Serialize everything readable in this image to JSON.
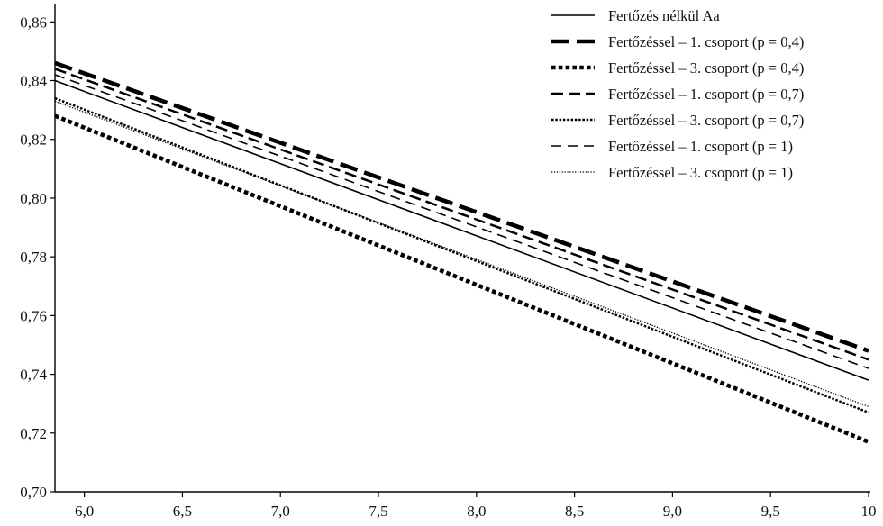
{
  "chart_data": {
    "type": "line",
    "title": "",
    "xlabel": "",
    "ylabel": "",
    "xlim": [
      5.85,
      10.0
    ],
    "ylim": [
      0.7,
      0.865
    ],
    "x_ticks": [
      "6,0",
      "6,5",
      "7,0",
      "7,5",
      "8,0",
      "8,5",
      "9,0",
      "9,5",
      "10"
    ],
    "y_ticks": [
      "0,70",
      "0,72",
      "0,74",
      "0,76",
      "0,78",
      "0,80",
      "0,82",
      "0,84",
      "0,86"
    ],
    "grid": false,
    "legend_position": "top-right",
    "series": [
      {
        "name": "Fertőzés nélkül Aa",
        "style": "solid-thin",
        "x": [
          5.85,
          10.0
        ],
        "y": [
          0.84,
          0.738
        ]
      },
      {
        "name": "Fertőzéssel – 1. csoport (p = 0,4)",
        "style": "dashed-thick",
        "x": [
          5.85,
          10.0
        ],
        "y": [
          0.846,
          0.748
        ]
      },
      {
        "name": "Fertőzéssel – 3. csoport (p = 0,4)",
        "style": "dotted-thick",
        "x": [
          5.85,
          10.0
        ],
        "y": [
          0.828,
          0.717
        ]
      },
      {
        "name": "Fertőzéssel – 1. csoport (p = 0,7)",
        "style": "dashed-medium",
        "x": [
          5.85,
          10.0
        ],
        "y": [
          0.844,
          0.745
        ]
      },
      {
        "name": "Fertőzéssel – 3. csoport (p = 0,7)",
        "style": "dotted-medium",
        "x": [
          5.85,
          10.0
        ],
        "y": [
          0.834,
          0.727
        ]
      },
      {
        "name": "Fertőzéssel – 1. csoport (p = 1)",
        "style": "dashed-thin",
        "x": [
          5.85,
          10.0
        ],
        "y": [
          0.842,
          0.742
        ]
      },
      {
        "name": "Fertőzéssel – 3. csoport (p = 1)",
        "style": "dotted-thin",
        "x": [
          5.85,
          10.0
        ],
        "y": [
          0.833,
          0.729
        ]
      }
    ]
  }
}
